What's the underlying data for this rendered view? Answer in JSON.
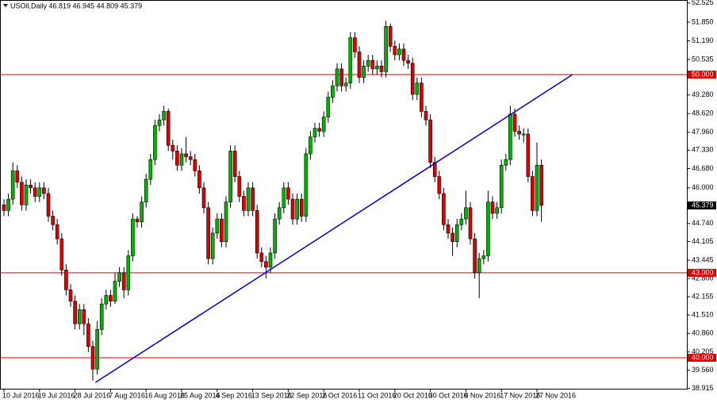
{
  "chart_data": {
    "type": "candlestick",
    "header": "USOil,Daily  46.819 46.945 44.809 45.379",
    "categories": [
      "10 Jul 2016",
      null,
      null,
      null,
      null,
      null,
      null,
      null,
      "19 Jul 2016",
      null,
      null,
      null,
      null,
      null,
      null,
      null,
      "28 Jul 2016",
      null,
      null,
      null,
      null,
      null,
      null,
      null,
      "7 Aug 2016",
      null,
      null,
      null,
      null,
      null,
      null,
      null,
      "16 Aug 2016",
      null,
      null,
      null,
      null,
      null,
      null,
      null,
      "25 Aug 2016",
      null,
      null,
      null,
      null,
      null,
      null,
      null,
      "4 Sep 2016",
      null,
      null,
      null,
      null,
      null,
      null,
      null,
      "13 Sep 2016",
      null,
      null,
      null,
      null,
      null,
      null,
      null,
      "22 Sep 2016",
      null,
      null,
      null,
      null,
      null,
      null,
      null,
      "2 Oct 2016",
      null,
      null,
      null,
      null,
      null,
      null,
      null,
      "11 Oct 2016",
      null,
      null,
      null,
      null,
      null,
      null,
      null,
      "20 Oct 2016",
      null,
      null,
      null,
      null,
      null,
      null,
      null,
      "30 Oct 2016",
      null,
      null,
      null,
      null,
      null,
      null,
      null,
      "8 Nov 2016",
      null,
      null,
      null,
      null,
      null,
      null,
      null,
      "17 Nov 2016",
      null,
      null,
      null,
      null,
      null,
      null,
      null,
      "27 Nov 2016",
      null
    ],
    "open": [
      45.4,
      45.2,
      45.6,
      46.6,
      46.2,
      45.4,
      46.1,
      46.0,
      45.7,
      46.0,
      45.8,
      45.0,
      44.7,
      44.2,
      43.1,
      42.4,
      42.0,
      41.2,
      41.7,
      41.2,
      40.4,
      39.6,
      41.0,
      41.9,
      42.2,
      42.0,
      42.7,
      43.0,
      42.4,
      43.6,
      44.9,
      44.8,
      45.5,
      46.3,
      47.0,
      48.2,
      48.4,
      48.7,
      47.5,
      47.3,
      46.8,
      47.2,
      47.1,
      47.0,
      46.6,
      46.0,
      45.3,
      43.5,
      44.4,
      44.9,
      44.1,
      45.5,
      47.3,
      46.4,
      45.7,
      45.2,
      46.0,
      45.2,
      43.7,
      43.4,
      43.2,
      43.7,
      44.9,
      45.3,
      46.0,
      45.6,
      44.9,
      45.6,
      45.0,
      47.2,
      47.8,
      48.1,
      48.0,
      48.5,
      49.2,
      49.6,
      50.2,
      49.6,
      49.7,
      51.3,
      50.8,
      49.9,
      50.3,
      50.5,
      50.2,
      50.3,
      50.1,
      51.7,
      51.0,
      50.7,
      50.9,
      50.5,
      50.4,
      49.3,
      49.7,
      48.7,
      48.4,
      46.9,
      46.4,
      45.8,
      44.7,
      44.4,
      44.1,
      44.7,
      44.9,
      45.3,
      44.2,
      43.0,
      43.5,
      43.6,
      45.5,
      45.1,
      45.3,
      46.8,
      47.0,
      48.6,
      48.0,
      47.9,
      47.9,
      46.4,
      45.2,
      46.8
    ],
    "high": [
      45.6,
      45.8,
      46.9,
      46.8,
      46.4,
      46.3,
      46.3,
      46.2,
      46.2,
      46.2,
      46.0,
      45.2,
      44.9,
      44.4,
      43.3,
      42.6,
      42.2,
      41.9,
      41.9,
      41.4,
      40.6,
      41.3,
      42.1,
      42.4,
      42.4,
      43.0,
      43.2,
      43.2,
      43.8,
      45.1,
      45.0,
      45.7,
      46.5,
      47.2,
      48.4,
      48.6,
      48.9,
      48.8,
      47.7,
      47.5,
      47.4,
      47.8,
      47.3,
      47.2,
      46.8,
      46.2,
      45.5,
      44.6,
      45.1,
      45.1,
      45.7,
      47.5,
      47.5,
      46.6,
      45.9,
      46.2,
      46.2,
      45.4,
      43.9,
      43.6,
      43.9,
      45.1,
      45.5,
      46.2,
      46.2,
      45.8,
      45.8,
      45.8,
      47.4,
      48.0,
      48.3,
      48.3,
      48.7,
      49.4,
      49.8,
      50.4,
      50.4,
      49.9,
      51.5,
      51.5,
      51.0,
      50.5,
      50.7,
      50.7,
      50.5,
      50.5,
      51.9,
      51.8,
      51.2,
      51.1,
      51.1,
      50.7,
      50.6,
      49.9,
      49.9,
      48.9,
      48.6,
      47.1,
      46.6,
      46.0,
      44.9,
      44.6,
      44.9,
      45.1,
      45.9,
      45.5,
      44.4,
      43.7,
      43.8,
      45.9,
      45.7,
      45.5,
      47.0,
      47.2,
      48.9,
      48.8,
      48.2,
      48.1,
      48.1,
      46.6,
      47.6,
      47.0
    ],
    "low": [
      45.0,
      45.0,
      45.4,
      46.0,
      45.2,
      45.2,
      45.8,
      45.5,
      45.5,
      45.6,
      44.8,
      44.5,
      44.0,
      42.9,
      42.2,
      41.8,
      41.0,
      41.0,
      40.8,
      40.2,
      39.2,
      39.4,
      40.8,
      41.7,
      41.8,
      41.9,
      42.5,
      42.1,
      42.2,
      43.4,
      44.6,
      44.6,
      45.3,
      46.1,
      46.8,
      48.0,
      48.2,
      47.3,
      47.0,
      46.6,
      46.6,
      46.9,
      46.8,
      46.4,
      45.8,
      45.1,
      43.3,
      43.3,
      44.2,
      43.9,
      43.9,
      45.3,
      46.2,
      45.5,
      45.0,
      45.0,
      45.0,
      43.5,
      43.2,
      42.8,
      43.0,
      43.5,
      44.7,
      45.1,
      45.4,
      44.7,
      44.7,
      44.8,
      44.8,
      47.0,
      47.6,
      47.8,
      47.8,
      48.3,
      49.0,
      49.4,
      49.4,
      49.4,
      49.5,
      50.6,
      49.7,
      49.7,
      50.1,
      50.0,
      50.0,
      49.9,
      49.9,
      50.8,
      50.5,
      50.5,
      50.3,
      50.2,
      49.1,
      49.1,
      48.5,
      48.2,
      46.7,
      46.2,
      45.6,
      44.5,
      44.2,
      43.6,
      43.9,
      44.5,
      44.7,
      44.0,
      42.8,
      42.1,
      43.3,
      43.4,
      44.9,
      44.9,
      45.1,
      46.6,
      46.8,
      47.8,
      47.7,
      47.6,
      46.2,
      45.0,
      45.0,
      44.8
    ],
    "close": [
      45.2,
      45.6,
      46.6,
      46.2,
      45.4,
      46.1,
      46.0,
      45.7,
      46.0,
      45.8,
      45.0,
      44.7,
      44.2,
      43.1,
      42.4,
      42.0,
      41.2,
      41.7,
      41.2,
      40.4,
      39.6,
      41.0,
      41.9,
      42.2,
      42.0,
      42.7,
      43.0,
      42.4,
      43.6,
      44.9,
      44.8,
      45.5,
      46.3,
      47.0,
      48.2,
      48.4,
      48.7,
      47.5,
      47.3,
      46.8,
      47.2,
      47.1,
      47.0,
      46.6,
      46.0,
      45.3,
      43.5,
      44.4,
      44.9,
      44.1,
      45.5,
      47.3,
      46.4,
      45.7,
      45.2,
      46.0,
      45.2,
      43.7,
      43.4,
      43.2,
      43.7,
      44.9,
      45.3,
      46.0,
      45.6,
      44.9,
      45.6,
      45.0,
      47.2,
      47.8,
      48.1,
      48.0,
      48.5,
      49.2,
      49.6,
      50.2,
      49.6,
      49.7,
      51.3,
      50.8,
      49.9,
      50.3,
      50.5,
      50.2,
      50.3,
      50.1,
      51.7,
      51.0,
      50.7,
      50.9,
      50.5,
      50.4,
      49.3,
      49.7,
      48.7,
      48.4,
      46.9,
      46.4,
      45.8,
      44.7,
      44.4,
      44.1,
      44.7,
      44.9,
      45.3,
      44.2,
      43.0,
      43.5,
      43.6,
      45.5,
      45.1,
      45.3,
      46.8,
      47.0,
      48.6,
      48.0,
      47.9,
      47.9,
      46.4,
      45.2,
      46.8,
      45.379
    ],
    "up_color": "#00b400",
    "down_color": "#e00000",
    "ylim": [
      38.908,
      52.633
    ],
    "yticks": [
      {
        "value": 52.525,
        "label": "52.525"
      },
      {
        "value": 51.85,
        "label": "51.850"
      },
      {
        "value": 51.19,
        "label": "51.190"
      },
      {
        "value": 50.535,
        "label": "50.535"
      },
      {
        "value": 49.28,
        "label": "49.280"
      },
      {
        "value": 48.62,
        "label": "48.620"
      },
      {
        "value": 47.96,
        "label": "47.960"
      },
      {
        "value": 47.33,
        "label": "47.330"
      },
      {
        "value": 46.68,
        "label": "46.680"
      },
      {
        "value": 46.0,
        "label": "46.000"
      },
      {
        "value": 44.74,
        "label": "44.740"
      },
      {
        "value": 44.105,
        "label": "44.105"
      },
      {
        "value": 43.445,
        "label": "43.445"
      },
      {
        "value": 42.8,
        "label": "42.800"
      },
      {
        "value": 42.155,
        "label": "42.155"
      },
      {
        "value": 41.51,
        "label": "41.510"
      },
      {
        "value": 40.86,
        "label": "40.860"
      },
      {
        "value": 40.205,
        "label": "40.205"
      },
      {
        "value": 39.56,
        "label": "39.560"
      },
      {
        "value": 38.915,
        "label": "38.915"
      }
    ],
    "levels": [
      {
        "value": 50.0,
        "label": "50.000"
      },
      {
        "value": 43.0,
        "label": "43.000"
      },
      {
        "value": 40.0,
        "label": "40.000"
      }
    ],
    "level_color": "#e00000",
    "last_price": {
      "value": 45.379,
      "label": "45.379"
    },
    "trendline": {
      "x": [
        20.6,
        128
      ],
      "y": [
        39.13,
        50.0
      ],
      "color": "#0000cc"
    }
  }
}
